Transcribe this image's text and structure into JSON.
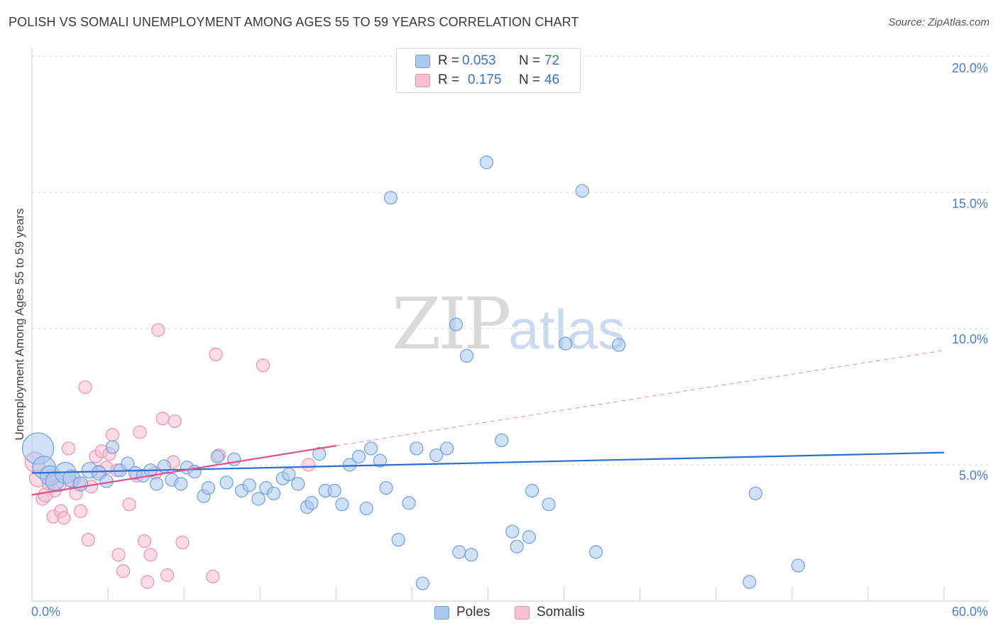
{
  "title": "POLISH VS SOMALI UNEMPLOYMENT AMONG AGES 55 TO 59 YEARS CORRELATION CHART",
  "source": "Source: ZipAtlas.com",
  "watermark": {
    "zip": "ZIP",
    "atlas": "atlas"
  },
  "legend": {
    "rows": [
      {
        "r_label": "R =",
        "r_value": "0.053",
        "n_label": "N =",
        "n_value": "72"
      },
      {
        "r_label": "R =",
        "r_value": "0.175",
        "n_label": "N =",
        "n_value": "46"
      }
    ],
    "bottom": [
      "Poles",
      "Somalis"
    ]
  },
  "colors": {
    "poles_fill": "#aac8f0",
    "poles_stroke": "#6d9de0",
    "poles_line": "#2a6fd6",
    "somalis_fill": "#f7bfd2",
    "somalis_stroke": "#ea8fb0",
    "somalis_line": "#e0508a",
    "tick_text": "#4a7fd0",
    "grid": "#dddddd"
  },
  "chart_data": {
    "type": "scatter",
    "title": "POLISH VS SOMALI UNEMPLOYMENT AMONG AGES 55 TO 59 YEARS CORRELATION CHART",
    "xlabel": "",
    "ylabel": "Unemployment Among Ages 55 to 59 years",
    "xlim": [
      0,
      60
    ],
    "ylim": [
      0,
      20
    ],
    "x_tick_labels": [
      "0.0%",
      "60.0%"
    ],
    "y_ticks": [
      5,
      10,
      15,
      20
    ],
    "y_tick_labels": [
      "5.0%",
      "10.0%",
      "15.0%",
      "20.0%"
    ],
    "grid": true,
    "legend_position": "top-center",
    "series": [
      {
        "name": "Poles",
        "R": 0.053,
        "N": 72,
        "trend": {
          "x": [
            0,
            60
          ],
          "y": [
            4.7,
            5.45
          ],
          "style": "solid"
        },
        "points": [
          [
            0.4,
            5.6,
            22
          ],
          [
            0.8,
            4.9,
            16
          ],
          [
            1.2,
            4.6,
            14
          ],
          [
            1.5,
            4.4,
            13
          ],
          [
            2.2,
            4.7,
            15
          ],
          [
            2.6,
            4.5,
            12
          ],
          [
            3.2,
            4.3,
            10
          ],
          [
            3.8,
            4.8,
            11
          ],
          [
            4.4,
            4.7,
            10
          ],
          [
            4.9,
            4.4,
            9
          ],
          [
            5.3,
            5.65,
            9
          ],
          [
            5.8,
            4.8,
            9
          ],
          [
            6.3,
            5.05,
            9
          ],
          [
            6.8,
            4.7,
            9
          ],
          [
            7.3,
            4.6,
            9
          ],
          [
            7.8,
            4.8,
            9
          ],
          [
            8.2,
            4.3,
            9
          ],
          [
            8.7,
            4.95,
            9
          ],
          [
            9.2,
            4.45,
            9
          ],
          [
            9.8,
            4.3,
            9
          ],
          [
            10.2,
            4.9,
            9
          ],
          [
            10.7,
            4.75,
            9
          ],
          [
            11.3,
            3.85,
            9
          ],
          [
            11.6,
            4.15,
            9
          ],
          [
            12.2,
            5.3,
            9
          ],
          [
            12.8,
            4.35,
            9
          ],
          [
            13.3,
            5.2,
            9
          ],
          [
            13.8,
            4.05,
            9
          ],
          [
            14.3,
            4.25,
            9
          ],
          [
            14.9,
            3.75,
            9
          ],
          [
            15.4,
            4.15,
            9
          ],
          [
            15.9,
            3.95,
            9
          ],
          [
            16.5,
            4.5,
            9
          ],
          [
            16.9,
            4.65,
            9
          ],
          [
            17.5,
            4.3,
            9
          ],
          [
            18.1,
            3.45,
            9
          ],
          [
            18.4,
            3.6,
            9
          ],
          [
            18.9,
            5.4,
            9
          ],
          [
            19.3,
            4.05,
            9
          ],
          [
            19.9,
            4.05,
            9
          ],
          [
            20.4,
            3.55,
            9
          ],
          [
            20.9,
            5.0,
            9
          ],
          [
            21.5,
            5.3,
            9
          ],
          [
            22.0,
            3.4,
            9
          ],
          [
            22.3,
            5.6,
            9
          ],
          [
            22.9,
            5.15,
            9
          ],
          [
            23.3,
            4.15,
            9
          ],
          [
            23.6,
            14.8,
            9
          ],
          [
            24.1,
            2.25,
            9
          ],
          [
            24.8,
            3.6,
            9
          ],
          [
            25.3,
            5.6,
            9
          ],
          [
            25.7,
            0.65,
            9
          ],
          [
            26.6,
            5.35,
            9
          ],
          [
            27.3,
            5.6,
            9
          ],
          [
            27.9,
            10.15,
            9
          ],
          [
            28.6,
            9.0,
            9
          ],
          [
            28.1,
            1.8,
            9
          ],
          [
            28.9,
            1.7,
            9
          ],
          [
            29.9,
            16.1,
            9
          ],
          [
            30.9,
            5.9,
            9
          ],
          [
            31.6,
            2.55,
            9
          ],
          [
            31.9,
            2.0,
            9
          ],
          [
            32.7,
            2.35,
            9
          ],
          [
            32.9,
            4.05,
            9
          ],
          [
            34.0,
            3.55,
            9
          ],
          [
            35.1,
            9.45,
            9
          ],
          [
            36.2,
            15.05,
            9
          ],
          [
            37.1,
            1.8,
            9
          ],
          [
            38.6,
            9.4,
            9
          ],
          [
            47.2,
            0.7,
            9
          ],
          [
            47.6,
            3.95,
            9
          ],
          [
            50.4,
            1.3,
            9
          ]
        ]
      },
      {
        "name": "Somalis",
        "R": 0.175,
        "N": 46,
        "trend": {
          "x": [
            0,
            20
          ],
          "y": [
            3.9,
            5.7
          ],
          "style": "solid",
          "extended": {
            "x": [
              20,
              60
            ],
            "y": [
              5.7,
              9.2
            ],
            "style": "dashed"
          }
        },
        "points": [
          [
            0.2,
            5.1,
            14
          ],
          [
            0.4,
            4.5,
            12
          ],
          [
            0.7,
            3.75,
            9
          ],
          [
            0.9,
            3.9,
            10
          ],
          [
            1.1,
            4.3,
            9
          ],
          [
            1.3,
            4.6,
            9
          ],
          [
            1.5,
            4.05,
            9
          ],
          [
            1.8,
            4.25,
            9
          ],
          [
            1.4,
            3.1,
            9
          ],
          [
            1.9,
            3.3,
            9
          ],
          [
            2.1,
            3.05,
            9
          ],
          [
            2.4,
            5.6,
            9
          ],
          [
            2.6,
            4.4,
            9
          ],
          [
            2.9,
            3.95,
            9
          ],
          [
            3.1,
            4.3,
            9
          ],
          [
            3.2,
            3.3,
            9
          ],
          [
            3.5,
            7.85,
            9
          ],
          [
            3.7,
            2.25,
            9
          ],
          [
            3.9,
            4.2,
            9
          ],
          [
            4.2,
            5.3,
            9
          ],
          [
            4.4,
            4.75,
            9
          ],
          [
            4.6,
            5.5,
            9
          ],
          [
            4.9,
            4.9,
            9
          ],
          [
            5.1,
            5.4,
            9
          ],
          [
            5.3,
            6.1,
            9
          ],
          [
            5.6,
            4.8,
            9
          ],
          [
            5.7,
            1.7,
            9
          ],
          [
            6.0,
            1.1,
            9
          ],
          [
            6.4,
            3.55,
            9
          ],
          [
            6.9,
            4.6,
            9
          ],
          [
            7.1,
            6.2,
            9
          ],
          [
            7.4,
            2.2,
            9
          ],
          [
            7.6,
            0.7,
            9
          ],
          [
            7.8,
            1.7,
            9
          ],
          [
            8.1,
            4.7,
            9
          ],
          [
            8.3,
            9.95,
            9
          ],
          [
            8.6,
            6.7,
            9
          ],
          [
            8.9,
            0.95,
            9
          ],
          [
            9.3,
            5.1,
            9
          ],
          [
            9.4,
            6.6,
            9
          ],
          [
            9.9,
            2.15,
            9
          ],
          [
            11.9,
            0.9,
            9
          ],
          [
            12.1,
            9.05,
            9
          ],
          [
            12.3,
            5.35,
            9
          ],
          [
            15.2,
            8.65,
            9
          ],
          [
            18.2,
            5.0,
            9
          ]
        ]
      }
    ]
  }
}
